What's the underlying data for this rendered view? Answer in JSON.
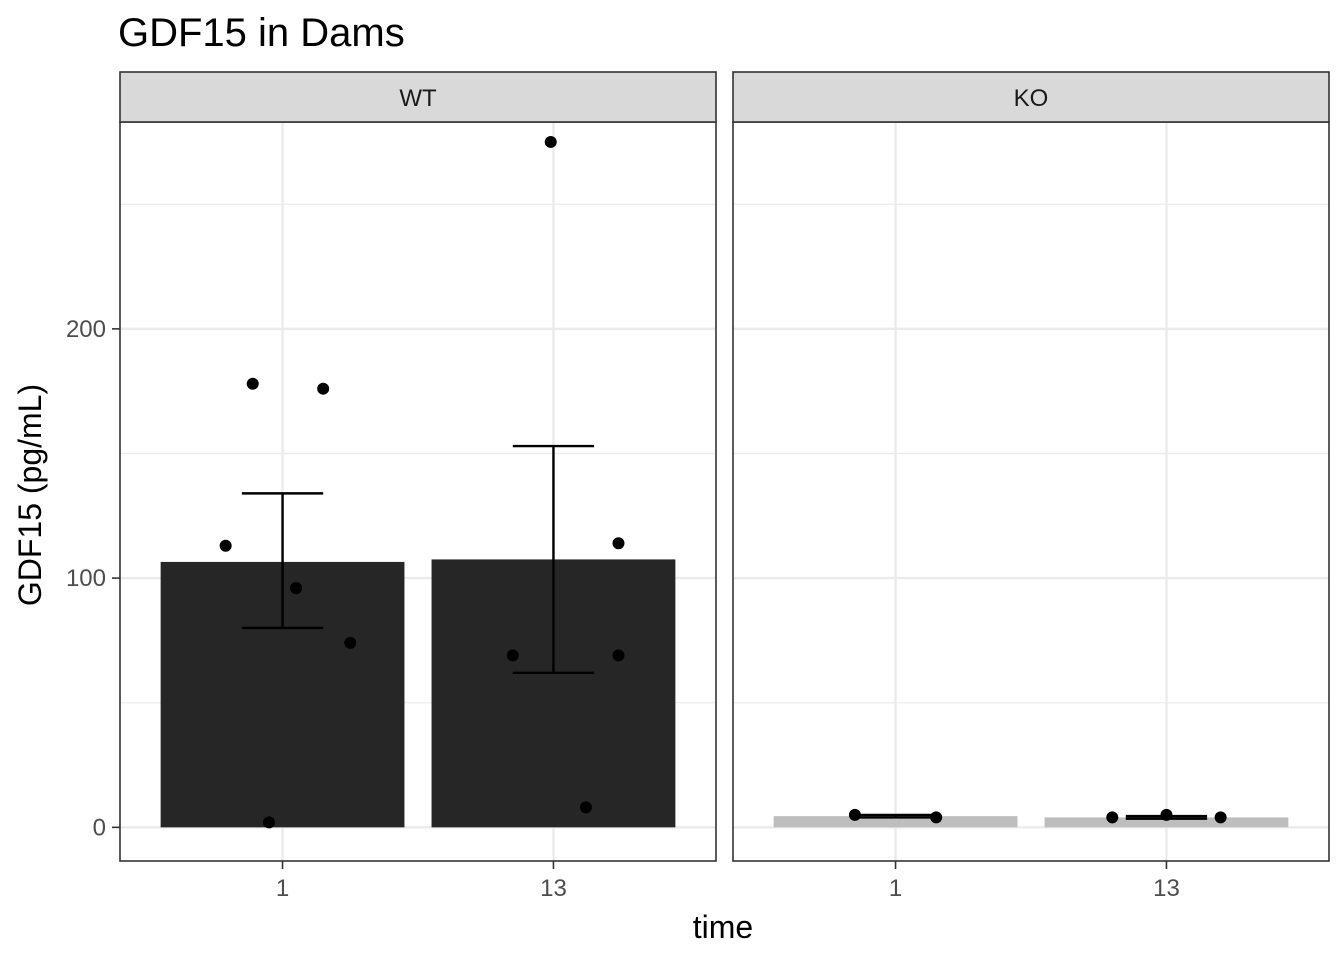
{
  "chart_data": {
    "type": "bar",
    "title": "GDF15 in Dams",
    "xlabel": "time",
    "ylabel": "GDF15 (pg/mL)",
    "ylim": [
      -13.5,
      283
    ],
    "y_ticks": [
      0,
      100,
      200
    ],
    "categories": [
      "1",
      "13"
    ],
    "grid": true,
    "facets": [
      {
        "label": "WT",
        "bar_color": "#262626",
        "errorbar_color": "#000000",
        "bars": [
          {
            "x": "1",
            "mean": 106.5,
            "se_low": 80,
            "se_high": 134,
            "points": [
              {
                "x": 0.79,
                "y": 113
              },
              {
                "x": 0.89,
                "y": 178
              },
              {
                "x": 1.05,
                "y": 96
              },
              {
                "x": 1.15,
                "y": 176
              },
              {
                "x": 1.25,
                "y": 74
              },
              {
                "x": 0.95,
                "y": 2
              }
            ]
          },
          {
            "x": "13",
            "mean": 107.5,
            "se_low": 62,
            "se_high": 153,
            "points": [
              {
                "x": 1.85,
                "y": 69
              },
              {
                "x": 1.99,
                "y": 275
              },
              {
                "x": 2.12,
                "y": 8
              },
              {
                "x": 2.24,
                "y": 69
              },
              {
                "x": 2.24,
                "y": 114
              }
            ]
          }
        ]
      },
      {
        "label": "KO",
        "bar_color": "#bebebe",
        "errorbar_color": "#000000",
        "bars": [
          {
            "x": "1",
            "mean": 4.5,
            "se_low": 4,
            "se_high": 5,
            "points": [
              {
                "x": 0.85,
                "y": 5
              },
              {
                "x": 1.15,
                "y": 4
              }
            ]
          },
          {
            "x": "13",
            "mean": 4,
            "se_low": 3.5,
            "se_high": 4.5,
            "points": [
              {
                "x": 1.8,
                "y": 4
              },
              {
                "x": 2.0,
                "y": 5
              },
              {
                "x": 2.2,
                "y": 4
              }
            ]
          }
        ]
      }
    ]
  }
}
